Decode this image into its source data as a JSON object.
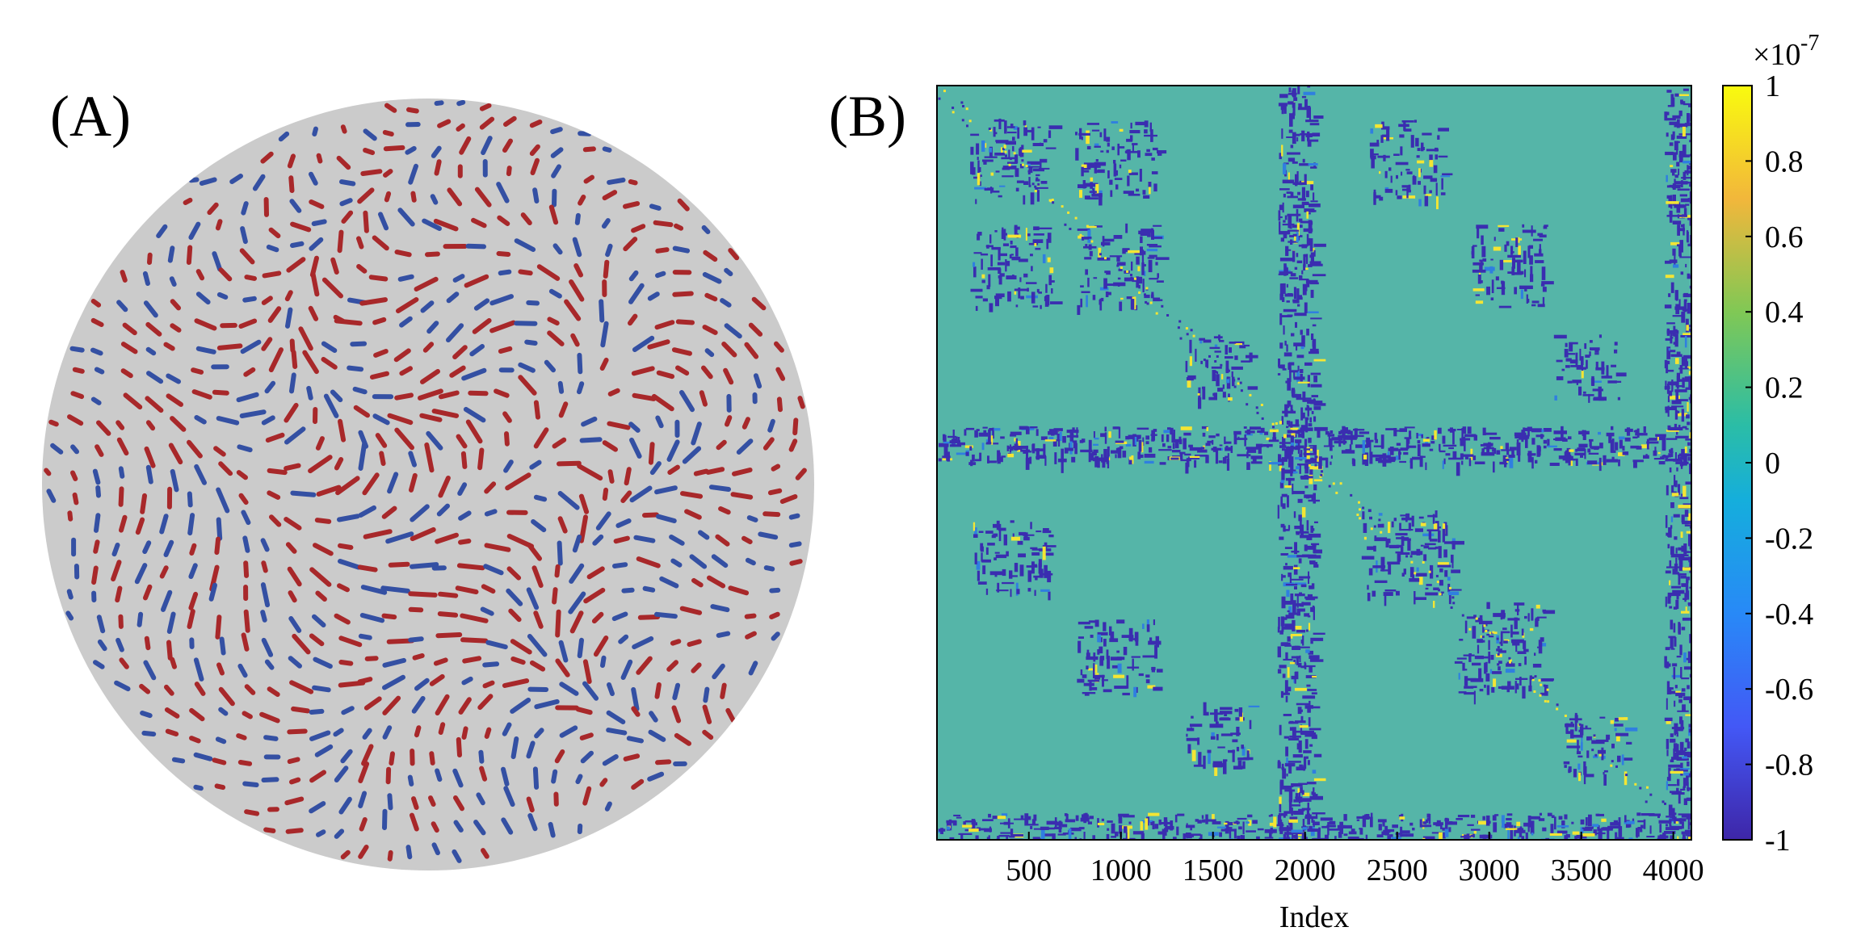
{
  "panel_labels": {
    "a": "(A)",
    "b": "(B)"
  },
  "colors": {
    "sphere_surface": "#cbcbcb",
    "arrow_red": "#a8282a",
    "arrow_blue": "#3450a3",
    "matrix_background": "#55b5a8",
    "matrix_negative": "#3a2db0",
    "matrix_positive": "#f4e534"
  },
  "chart_data": [
    {
      "type": "other",
      "description_kind": "vector field on sphere",
      "series": [
        {
          "name": "",
          "color": "#a8282a"
        },
        {
          "name": "",
          "color": "#3450a3"
        }
      ]
    },
    {
      "type": "heatmap",
      "xlabel": "Index",
      "ylabel": "",
      "x_ticks": [
        500,
        1000,
        1500,
        2000,
        2500,
        3000,
        3500,
        4000
      ],
      "xlim": [
        1,
        4098
      ],
      "ylim": [
        1,
        4098
      ],
      "colorbar": {
        "ticks": [
          1,
          0.8,
          0.6,
          0.4,
          0.2,
          0,
          -0.2,
          -0.4,
          -0.6,
          -0.8,
          -1
        ],
        "tick_labels": [
          "1",
          "0.8",
          "0.6",
          "0.4",
          "0.2",
          "0",
          "-0.2",
          "-0.4",
          "-0.6",
          "-0.8",
          "-1"
        ],
        "range": [
          -1e-07,
          1e-07
        ],
        "exponent_label": "×10",
        "exponent": "-7",
        "colormap": "parula"
      },
      "blocks": [
        {
          "x": [
            180,
            620
          ],
          "y": [
            180,
            620
          ],
          "value": -1
        },
        {
          "x": [
            180,
            620
          ],
          "y": [
            750,
            1200
          ],
          "value": -1
        },
        {
          "x": [
            750,
            1200
          ],
          "y": [
            180,
            620
          ],
          "value": -1
        },
        {
          "x": [
            750,
            1200
          ],
          "y": [
            750,
            1200
          ],
          "value": -1
        },
        {
          "x": [
            1350,
            1700
          ],
          "y": [
            1350,
            1700
          ],
          "value": -1
        },
        {
          "x": [
            1850,
            2050
          ],
          "y": [
            1,
            4098
          ],
          "value": -1
        },
        {
          "x": [
            1,
            4098
          ],
          "y": [
            1850,
            2050
          ],
          "value": -1
        },
        {
          "x": [
            2300,
            2800
          ],
          "y": [
            2300,
            2800
          ],
          "value": -1
        },
        {
          "x": [
            2800,
            3300
          ],
          "y": [
            2800,
            3300
          ],
          "value": -1
        },
        {
          "x": [
            3400,
            3750
          ],
          "y": [
            3400,
            3750
          ],
          "value": -1
        },
        {
          "x": [
            2350,
            2750
          ],
          "y": [
            180,
            620
          ],
          "value": -1
        },
        {
          "x": [
            180,
            620
          ],
          "y": [
            2350,
            2750
          ],
          "value": -1
        },
        {
          "x": [
            3350,
            3700
          ],
          "y": [
            1350,
            1700
          ],
          "value": -1
        },
        {
          "x": [
            1350,
            1700
          ],
          "y": [
            3350,
            3700
          ],
          "value": -1
        },
        {
          "x": [
            750,
            1200
          ],
          "y": [
            2900,
            3300
          ],
          "value": -1
        },
        {
          "x": [
            2900,
            3300
          ],
          "y": [
            750,
            1200
          ],
          "value": -1
        },
        {
          "x": [
            1,
            4098
          ],
          "y": [
            3950,
            4098
          ],
          "value": -1
        },
        {
          "x": [
            3950,
            4098
          ],
          "y": [
            1,
            4098
          ],
          "value": -1
        }
      ]
    }
  ]
}
